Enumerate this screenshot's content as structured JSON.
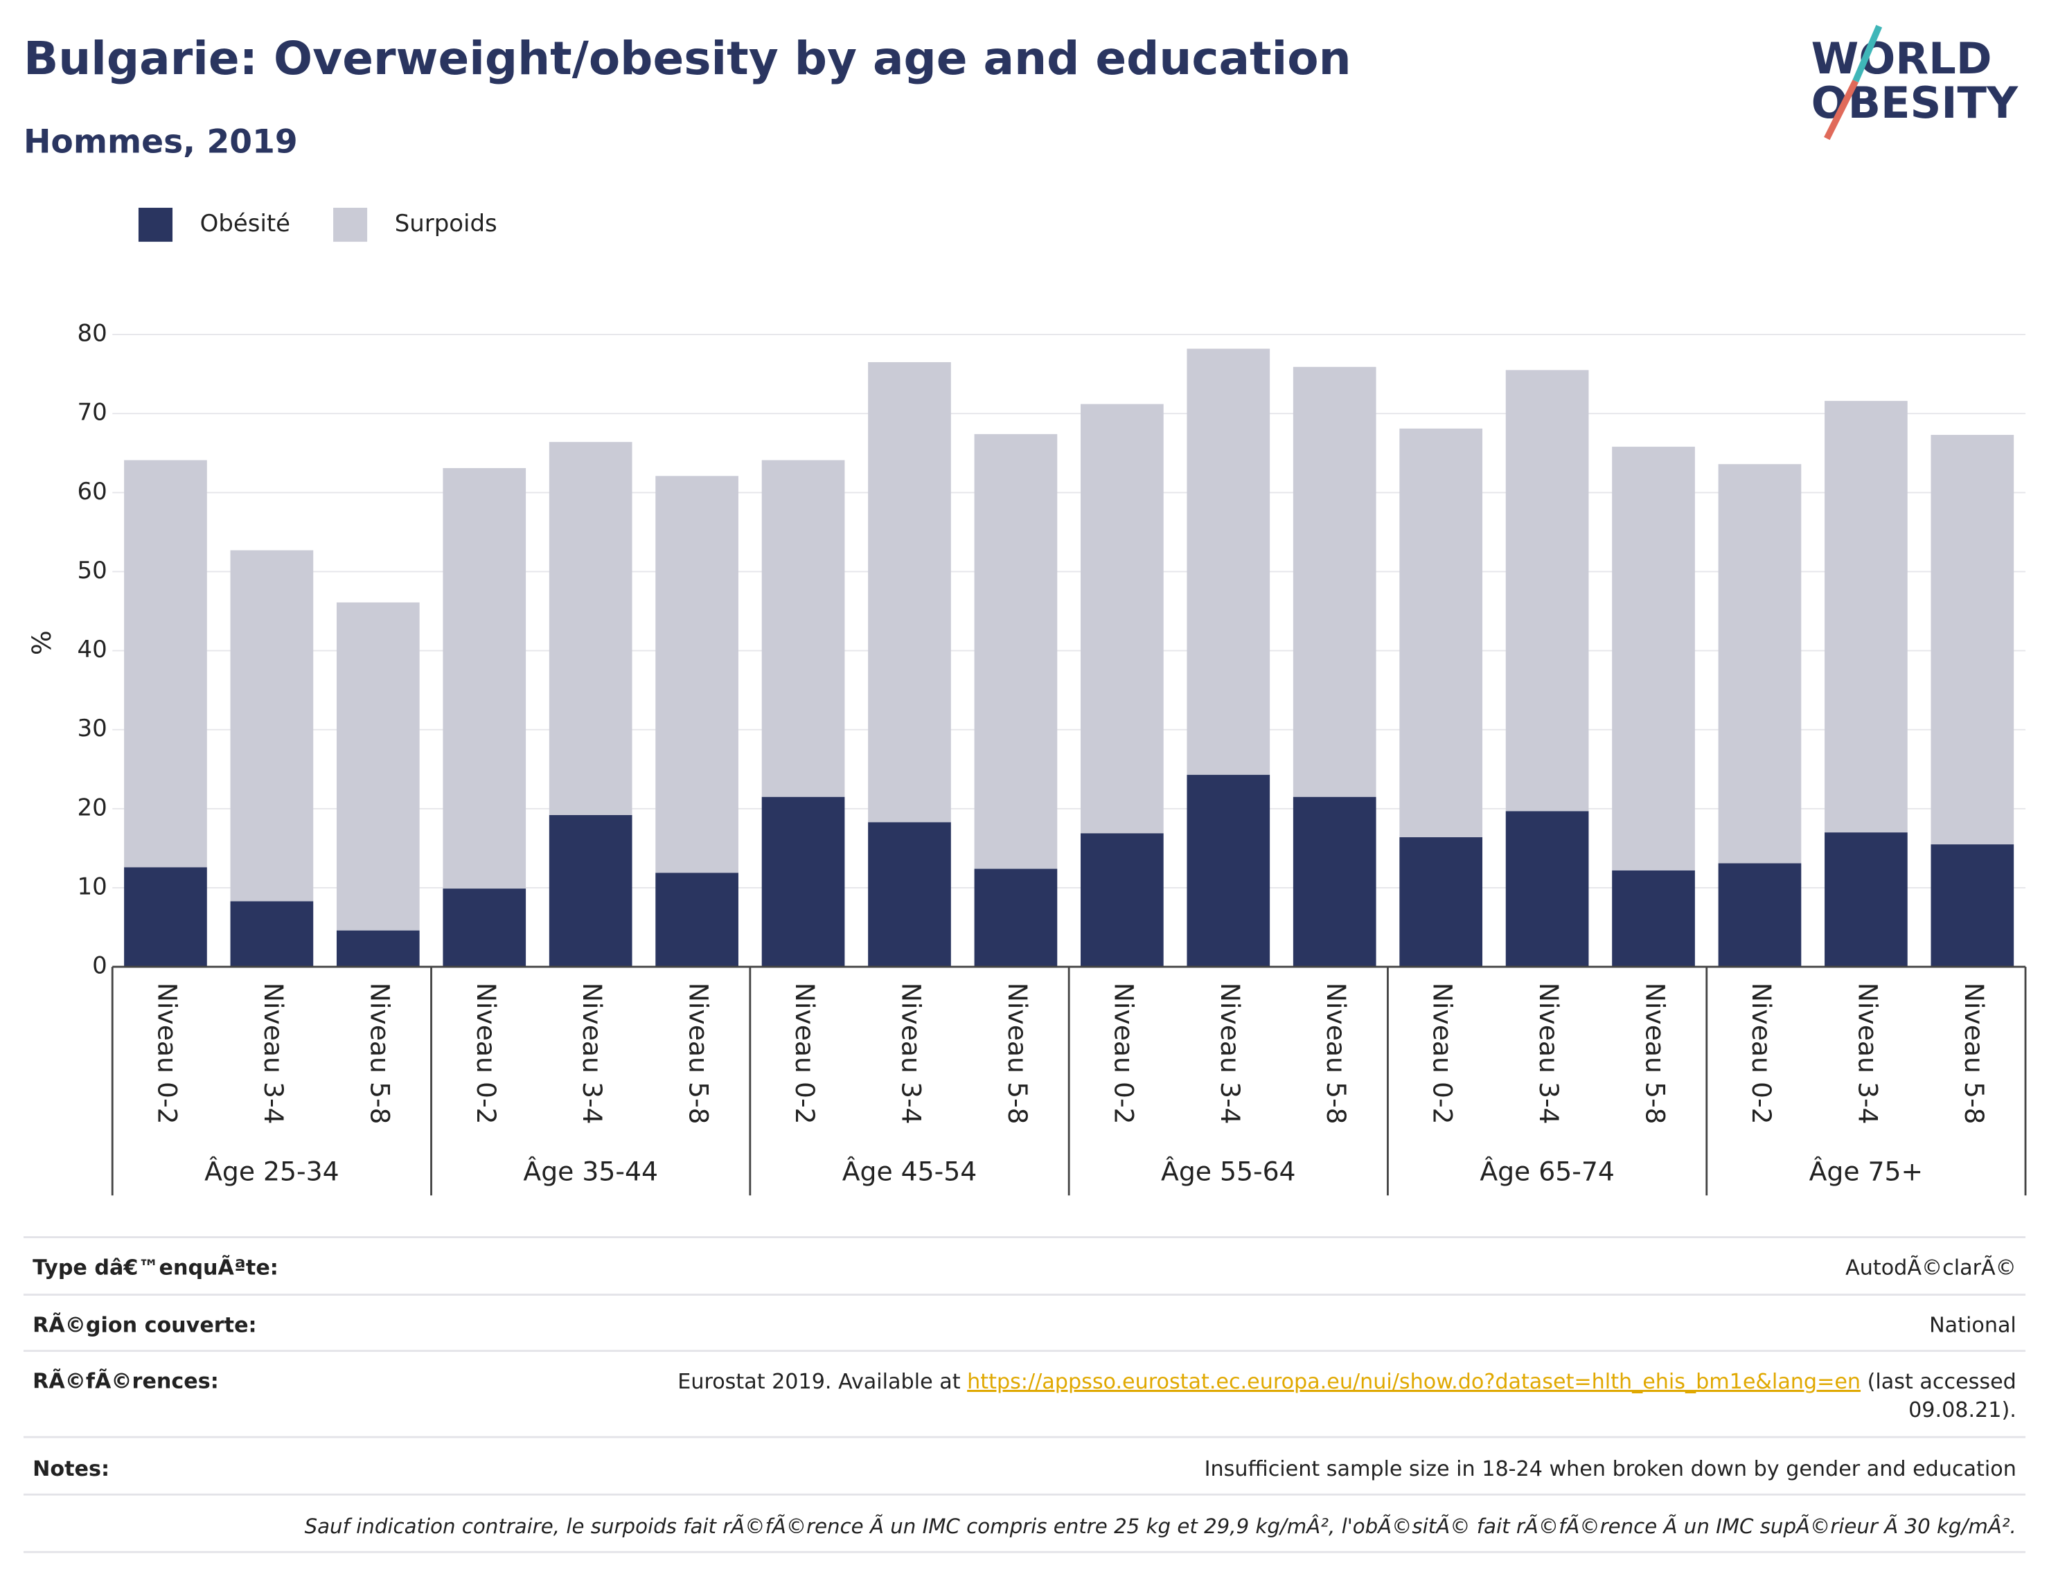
{
  "chart_data": {
    "type": "stacked_bar",
    "title": "Bulgarie: Overweight/obesity by age and education",
    "subtitle": "Hommes, 2019",
    "y_label": "%",
    "categories": [
      "Niveau 0-2",
      "Niveau 3-4",
      "Niveau 5-8",
      "Niveau 0-2",
      "Niveau 3-4",
      "Niveau 5-8",
      "Niveau 0-2",
      "Niveau 3-4",
      "Niveau 5-8",
      "Niveau 0-2",
      "Niveau 3-4",
      "Niveau 5-8",
      "Niveau 0-2",
      "Niveau 3-4",
      "Niveau 5-8",
      "Niveau 0-2",
      "Niveau 3-4",
      "Niveau 5-8"
    ],
    "groups": [
      "Âge 25-34",
      "Âge 35-44",
      "Âge 45-54",
      "Âge 55-64",
      "Âge 65-74",
      "Âge 75+"
    ],
    "series": [
      {
        "name": "Obésité",
        "color": "#2a3560",
        "values": [
          12.6,
          8.3,
          4.6,
          9.9,
          19.2,
          11.9,
          21.5,
          18.3,
          12.4,
          16.9,
          24.3,
          21.5,
          16.4,
          19.7,
          12.2,
          13.1,
          17.0,
          15.5
        ]
      },
      {
        "name": "Surpoids",
        "color": "#cacbd6",
        "values": [
          51.5,
          44.4,
          41.5,
          53.2,
          47.2,
          50.2,
          42.6,
          58.2,
          55.0,
          54.3,
          53.9,
          54.4,
          51.7,
          55.8,
          53.6,
          50.5,
          54.6,
          51.8
        ]
      }
    ],
    "ylim": [
      0,
      80
    ],
    "yticks": [
      0,
      10,
      20,
      30,
      40,
      50,
      60,
      70,
      80
    ],
    "grid": true,
    "legend": "top-left"
  },
  "logo": [
    "WORLD",
    "OBESITY"
  ],
  "footer": {
    "rows": [
      {
        "label": "Type dâ€™enquÃªte:",
        "value": "AutodÃ©clarÃ©"
      },
      {
        "label": "RÃ©gion couverte:",
        "value": "National"
      }
    ],
    "references": {
      "label": "RÃ©fÃ©rences:",
      "before": "Eurostat 2019. Available at ",
      "link": "https://appsso.eurostat.ec.europa.eu/nui/show.do?dataset=hlth_ehis_bm1e&lang=en",
      "after": [
        " (last accessed",
        "09.08.21)."
      ]
    },
    "notes": {
      "label": "Notes:",
      "value": "Insufficient sample size in 18-24 when broken down by gender and education"
    },
    "disclaimer": "Sauf indication contraire, le surpoids fait rÃ©fÃ©rence Ã  un IMC compris entre 25 kg et 29,9 kg/mÂ², l'obÃ©sitÃ© fait rÃ©fÃ©rence Ã  un IMC supÃ©rieur Ã  30 kg/mÂ²."
  }
}
